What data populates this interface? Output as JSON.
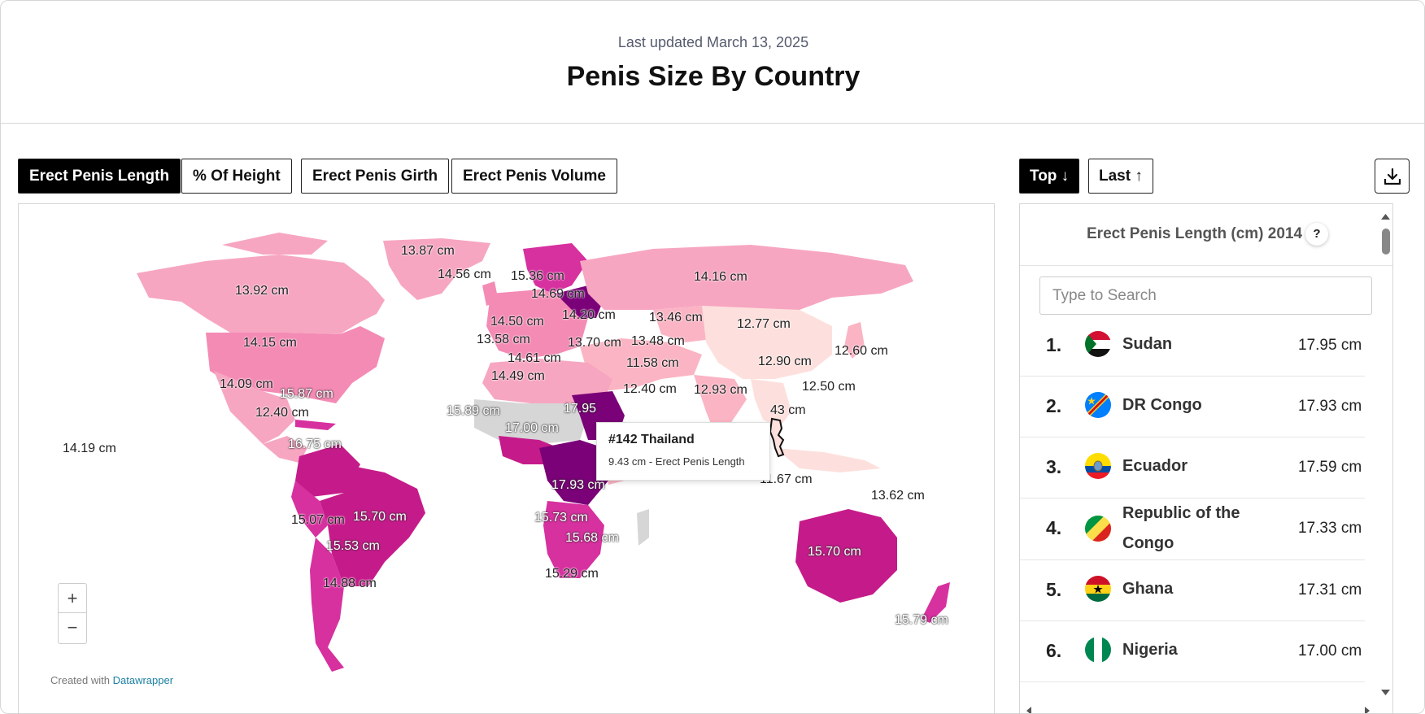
{
  "header": {
    "updated": "Last updated March 13, 2025",
    "title": "Penis Size By Country"
  },
  "tabs": [
    {
      "label": "Erect Penis Length",
      "active": true
    },
    {
      "label": "% Of Height",
      "active": false
    },
    {
      "label": "Erect Penis Girth",
      "active": false
    },
    {
      "label": "Erect Penis Volume",
      "active": false
    }
  ],
  "sort": [
    {
      "label": "Top ↓",
      "active": true
    },
    {
      "label": "Last ↑",
      "active": false
    }
  ],
  "download_icon": "download-icon",
  "map": {
    "color_scale": [
      "#fde0dd",
      "#fbb4c3",
      "#f48bb4",
      "#d7309f",
      "#c51b8a",
      "#7a0177"
    ],
    "labels": [
      "13.87 cm",
      "14.56 cm",
      "15.36 cm",
      "14.16 cm",
      "13.92 cm",
      "14.69 cm",
      "14.20 cm",
      "14.50 cm",
      "13.46 cm",
      "12.77 cm",
      "14.15 cm",
      "13.58 cm",
      "13.70 cm",
      "13.48 cm",
      "12.60 cm",
      "14.61 cm",
      "11.58 cm",
      "12.90 cm",
      "14.49 cm",
      "14.09 cm",
      "15.87 cm",
      "12.40 cm",
      "12.93 cm",
      "12.50 cm",
      "12.40 cm",
      "15.89 cm",
      "17.95",
      "43 cm",
      "17.00 cm",
      "14.19 cm",
      "16.75 cm",
      "17.93 cm",
      "11.67 cm",
      "13.62 cm",
      "15.07 cm",
      "15.70 cm",
      "15.73 cm",
      "15.53 cm",
      "15.68 cm",
      "15.70 cm",
      "15.29 cm",
      "14.88 cm",
      "15.79 cm"
    ],
    "tooltip": {
      "title": "#142 Thailand",
      "subtitle": "9.43 cm - Erect Penis Length"
    },
    "zoom_in": "+",
    "zoom_out": "−",
    "credit_prefix": "Created with",
    "credit_link": "Datawrapper"
  },
  "ranking": {
    "title": "Erect Penis Length (cm) 2014",
    "help": "?",
    "search_placeholder": "Type to Search",
    "rows": [
      {
        "rank": "1.",
        "country": "Sudan",
        "value": "17.95 cm",
        "flag": "sudan-flag-icon"
      },
      {
        "rank": "2.",
        "country": "DR Congo",
        "value": "17.93 cm",
        "flag": "dr-congo-flag-icon"
      },
      {
        "rank": "3.",
        "country": "Ecuador",
        "value": "17.59 cm",
        "flag": "ecuador-flag-icon"
      },
      {
        "rank": "4.",
        "country": "Republic of the Congo",
        "value": "17.33 cm",
        "flag": "congo-flag-icon"
      },
      {
        "rank": "5.",
        "country": "Ghana",
        "value": "17.31 cm",
        "flag": "ghana-flag-icon"
      },
      {
        "rank": "6.",
        "country": "Nigeria",
        "value": "17.00 cm",
        "flag": "nigeria-flag-icon"
      }
    ]
  }
}
